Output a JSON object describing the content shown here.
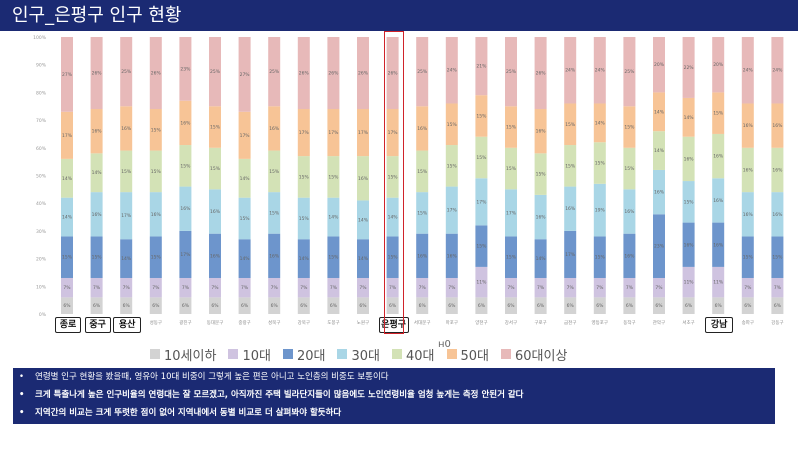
{
  "title": "인구_은평구 인구 현황",
  "chart_data": {
    "type": "bar",
    "stacked": "percent",
    "y_tick_labels": [
      "0%",
      "10%",
      "20%",
      "30%",
      "40%",
      "50%",
      "60%",
      "70%",
      "80%",
      "90%",
      "100%"
    ],
    "ylim": [
      0,
      100
    ],
    "categories": [
      "종로구",
      "중구",
      "용산구",
      "성동구",
      "광진구",
      "동대문구",
      "중랑구",
      "성북구",
      "강북구",
      "도봉구",
      "노원구",
      "은평구",
      "서대문구",
      "마포구",
      "양천구",
      "강서구",
      "구로구",
      "금천구",
      "영등포구",
      "동작구",
      "관악구",
      "서초구",
      "강남구",
      "송파구",
      "강동구"
    ],
    "series": [
      {
        "name": "10세이하",
        "color": "#d3d3d3",
        "values": [
          6,
          6,
          6,
          6,
          6,
          6,
          6,
          6,
          6,
          6,
          6,
          6,
          6,
          6,
          6,
          6,
          6,
          6,
          6,
          6,
          6,
          6,
          6,
          6,
          6
        ],
        "labels": [
          "6%",
          "6%",
          "6%",
          "6%",
          "6%",
          "6%",
          "6%",
          "6%",
          "6%",
          "6%",
          "6%",
          "6%",
          "6%",
          "6%",
          "6%",
          "6%",
          "6%",
          "6%",
          "6%",
          "6%",
          "6%",
          "6%",
          "6%",
          "6%",
          "6%"
        ]
      },
      {
        "name": "10대",
        "color": "#cfc3e0",
        "values": [
          7,
          7,
          7,
          7,
          7,
          7,
          7,
          7,
          7,
          7,
          7,
          7,
          7,
          7,
          11,
          7,
          7,
          7,
          7,
          7,
          7,
          11,
          11,
          7,
          7
        ],
        "labels": [
          "7%",
          "7%",
          "7%",
          "7%",
          "7%",
          "7%",
          "7%",
          "7%",
          "7%",
          "7%",
          "7%",
          "7%",
          "7%",
          "7%",
          "11%",
          "7%",
          "7%",
          "7%",
          "7%",
          "7%",
          "7%",
          "11%",
          "11%",
          "7%",
          "7%"
        ]
      },
      {
        "name": "20대",
        "color": "#6d95cc",
        "values": [
          15,
          15,
          14,
          15,
          17,
          16,
          14,
          16,
          14,
          15,
          14,
          15,
          16,
          16,
          15,
          15,
          14,
          17,
          15,
          16,
          23,
          16,
          16,
          15,
          15
        ],
        "labels": [
          "15%",
          "15%",
          "14%",
          "15%",
          "17%",
          "16%",
          "14%",
          "16%",
          "14%",
          "15%",
          "14%",
          "15%",
          "16%",
          "16%",
          "15%",
          "15%",
          "14%",
          "17%",
          "15%",
          "16%",
          "23%",
          "16%",
          "16%",
          "15%",
          "15%"
        ]
      },
      {
        "name": "30대",
        "color": "#a9d6e6",
        "values": [
          14,
          16,
          17,
          16,
          16,
          16,
          15,
          15,
          15,
          14,
          14,
          14,
          15,
          17,
          17,
          17,
          16,
          16,
          19,
          16,
          16,
          15,
          16,
          16,
          16
        ],
        "labels": [
          "14%",
          "16%",
          "17%",
          "16%",
          "16%",
          "16%",
          "15%",
          "15%",
          "15%",
          "14%",
          "14%",
          "14%",
          "15%",
          "17%",
          "17%",
          "17%",
          "16%",
          "16%",
          "19%",
          "16%",
          "16%",
          "15%",
          "16%",
          "16%",
          "16%"
        ]
      },
      {
        "name": "40대",
        "color": "#d3e2b6",
        "values": [
          14,
          14,
          15,
          15,
          15,
          15,
          14,
          15,
          15,
          15,
          16,
          15,
          15,
          15,
          15,
          15,
          15,
          15,
          15,
          15,
          14,
          16,
          16,
          16,
          16
        ],
        "labels": [
          "14%",
          "14%",
          "15%",
          "15%",
          "15%",
          "15%",
          "14%",
          "15%",
          "15%",
          "15%",
          "16%",
          "15%",
          "15%",
          "15%",
          "15%",
          "15%",
          "15%",
          "15%",
          "15%",
          "15%",
          "14%",
          "16%",
          "16%",
          "16%",
          "16%"
        ]
      },
      {
        "name": "50대",
        "color": "#f7c496",
        "values": [
          17,
          16,
          16,
          15,
          16,
          15,
          17,
          16,
          17,
          17,
          17,
          17,
          16,
          15,
          15,
          15,
          16,
          15,
          14,
          15,
          14,
          14,
          15,
          16,
          16
        ],
        "labels": [
          "17%",
          "16%",
          "16%",
          "15%",
          "16%",
          "15%",
          "17%",
          "16%",
          "17%",
          "17%",
          "17%",
          "17%",
          "16%",
          "15%",
          "15%",
          "15%",
          "16%",
          "15%",
          "14%",
          "15%",
          "14%",
          "14%",
          "15%",
          "16%",
          "16%"
        ]
      },
      {
        "name": "60대이상",
        "color": "#e7b9b9",
        "values": [
          27,
          26,
          25,
          26,
          23,
          25,
          27,
          25,
          26,
          26,
          26,
          26,
          25,
          24,
          21,
          25,
          26,
          24,
          24,
          25,
          20,
          22,
          20,
          24,
          24
        ],
        "labels": [
          "27%",
          "26%",
          "25%",
          "26%",
          "23%",
          "25%",
          "27%",
          "25%",
          "26%",
          "26%",
          "26%",
          "26%",
          "25%",
          "24%",
          "21%",
          "25%",
          "26%",
          "24%",
          "24%",
          "25%",
          "20%",
          "22%",
          "20%",
          "24%",
          "24%"
        ]
      }
    ]
  },
  "boxed_labels": [
    {
      "index": 0,
      "text": "종로"
    },
    {
      "index": 1,
      "text": "중구"
    },
    {
      "index": 2,
      "text": "용산"
    },
    {
      "index": 11,
      "text": "은평구"
    },
    {
      "index": 22,
      "text": "강남"
    }
  ],
  "highlight_index": 11,
  "stray_text": "н0",
  "notes": [
    {
      "bullet": "•",
      "text": "연령별 인구 현황을 봤을때, 영유아 10대 비중이 그렇게 높은 편은 아니고 노인층의 비중도 보통이다",
      "bold": false
    },
    {
      "bullet": "•",
      "text": "크게 특출나게 높은 인구비율의 연령대는 잘 모르겠고, 아직까진 주택 빌라단지들이 많음에도 노인연령비율 엄청 높게는 측정 안된거 같다",
      "bold": true
    },
    {
      "bullet": "•",
      "text": "지역간의 비교는 크게 뚜렷한 점이 없어 지역내에서 동별 비교로 더 살펴봐야 할듯하다",
      "bold": true
    }
  ]
}
